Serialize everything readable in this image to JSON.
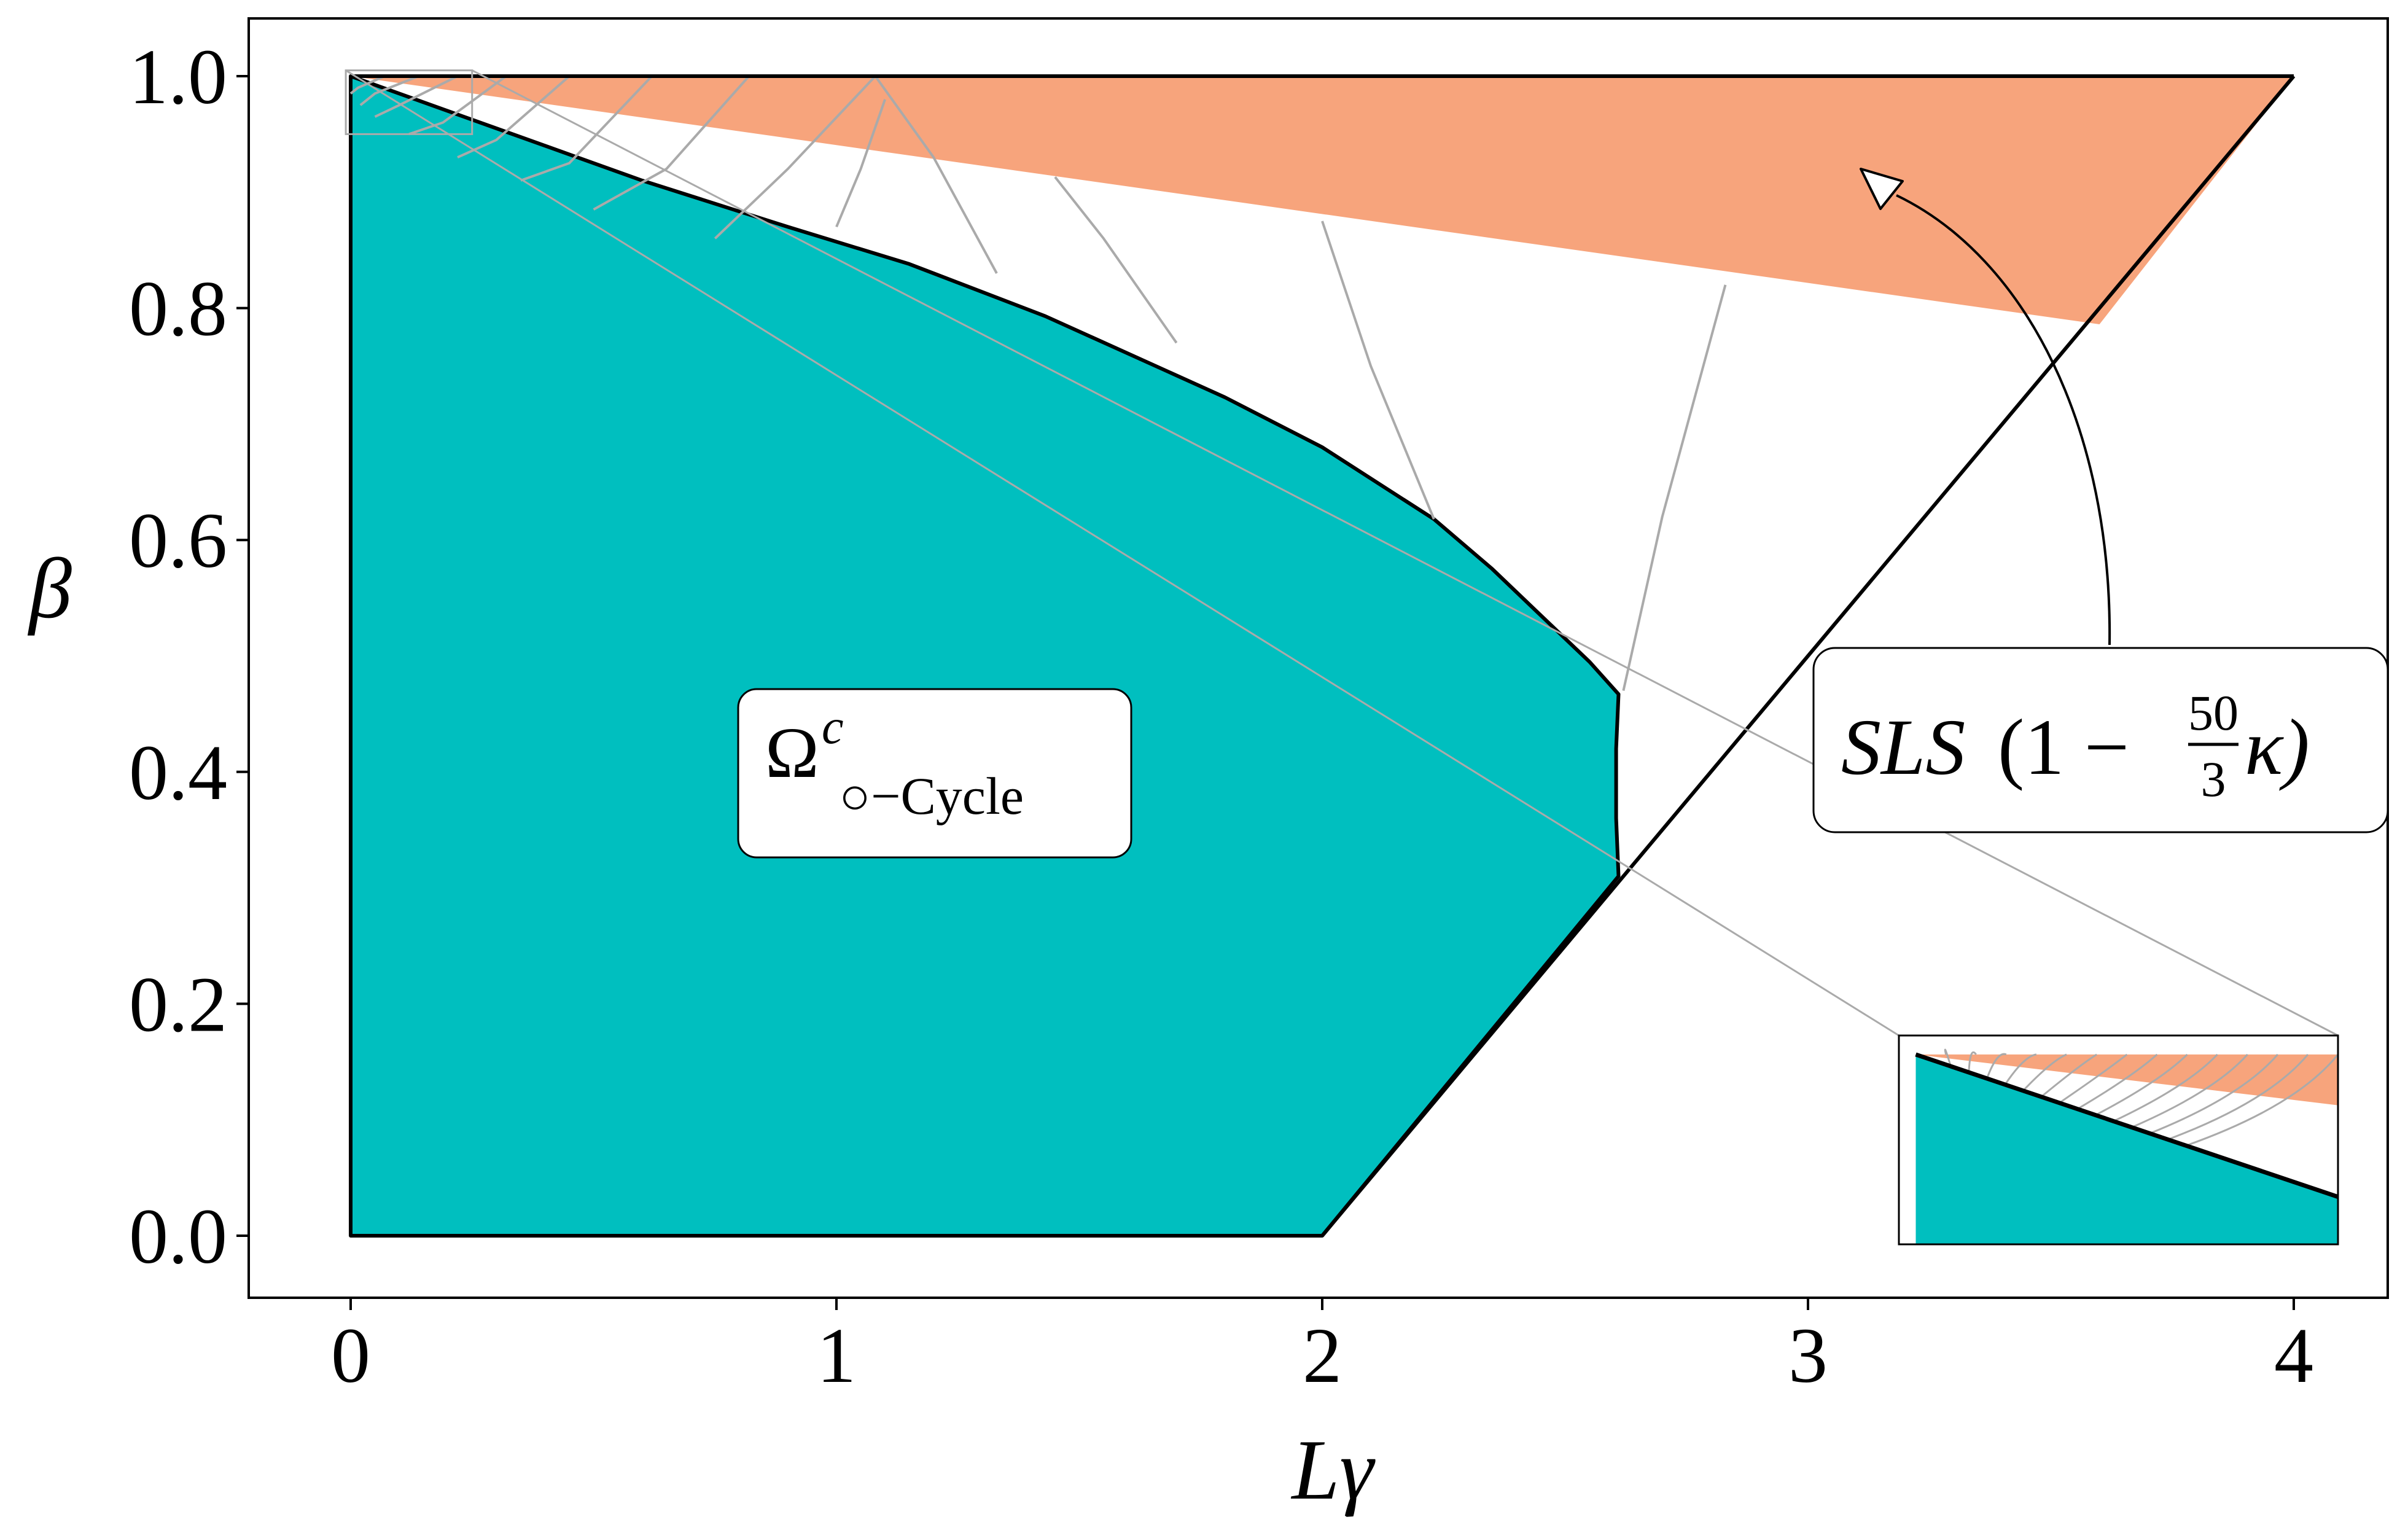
{
  "chart_data": {
    "type": "area",
    "xlabel": "Lγ",
    "ylabel": "β",
    "xlim": [
      -0.21,
      4.2
    ],
    "ylim": [
      -0.05,
      1.05
    ],
    "xticks": [
      0,
      1,
      2,
      3,
      4
    ],
    "yticks": [
      0.0,
      0.2,
      0.4,
      0.6,
      0.8,
      1.0
    ],
    "xtick_labels": [
      "0",
      "1",
      "2",
      "3",
      "4"
    ],
    "ytick_labels": [
      "0.0",
      "0.2",
      "0.4",
      "0.6",
      "0.8",
      "1.0"
    ],
    "grid": false,
    "colors": {
      "region_fill": "#00bfbf",
      "sls_fill": "#f7a47c",
      "boundary": "#000000",
      "contour": "#aaaaaa"
    },
    "region": {
      "name": "Ω^c_{○−Cycle}",
      "label_main": "Ω",
      "label_sup": "c",
      "label_sub": "○−Cycle",
      "boundary": [
        [
          0,
          0
        ],
        [
          0,
          1.0
        ],
        [
          0.3,
          0.955
        ],
        [
          0.6,
          0.91
        ],
        [
          0.9,
          0.87
        ],
        [
          1.15,
          0.838
        ],
        [
          1.43,
          0.793
        ],
        [
          1.8,
          0.723
        ],
        [
          2.0,
          0.68
        ],
        [
          2.23,
          0.618
        ],
        [
          2.35,
          0.575
        ],
        [
          2.45,
          0.535
        ],
        [
          2.55,
          0.495
        ],
        [
          2.61,
          0.467
        ],
        [
          2.605,
          0.42
        ],
        [
          2.605,
          0.36
        ],
        [
          2.61,
          0.31
        ],
        [
          2.0,
          0.0
        ]
      ]
    },
    "sls_region": {
      "name": "SLS(1 − 50/3 κ)",
      "label_parts": [
        "SLS",
        "(1 − ",
        "50",
        "3",
        "κ)"
      ],
      "boundary": [
        [
          0,
          1.0
        ],
        [
          4.0,
          1.0
        ],
        [
          3.6,
          0.786
        ]
      ]
    },
    "lines": [
      {
        "name": "upper-edge",
        "points": [
          [
            0,
            1.0
          ],
          [
            4.0,
            1.0
          ]
        ]
      },
      {
        "name": "diagonal",
        "points": [
          [
            2.0,
            0.0
          ],
          [
            4.0,
            1.0
          ]
        ]
      }
    ],
    "contours": [
      [
        [
          0.07,
          1.0
        ],
        [
          0.015,
          0.99
        ],
        [
          0.0,
          0.985
        ]
      ],
      [
        [
          0.14,
          1.0
        ],
        [
          0.05,
          0.985
        ],
        [
          0.02,
          0.975
        ]
      ],
      [
        [
          0.22,
          1.0
        ],
        [
          0.1,
          0.975
        ],
        [
          0.05,
          0.965
        ]
      ],
      [
        [
          0.32,
          1.0
        ],
        [
          0.19,
          0.96
        ],
        [
          0.12,
          0.95
        ]
      ],
      [
        [
          0.45,
          1.0
        ],
        [
          0.3,
          0.945
        ],
        [
          0.22,
          0.93
        ]
      ],
      [
        [
          0.62,
          1.0
        ],
        [
          0.45,
          0.925
        ],
        [
          0.35,
          0.91
        ]
      ],
      [
        [
          0.82,
          1.0
        ],
        [
          0.65,
          0.92
        ],
        [
          0.5,
          0.885
        ]
      ],
      [
        [
          1.08,
          1.0
        ],
        [
          0.9,
          0.92
        ],
        [
          0.75,
          0.86
        ]
      ],
      [
        [
          1.1,
          0.98
        ],
        [
          1.05,
          0.92
        ],
        [
          1.0,
          0.87
        ]
      ],
      [
        [
          1.08,
          1.0
        ],
        [
          1.2,
          0.93
        ],
        [
          1.33,
          0.83
        ]
      ],
      [
        [
          1.45,
          0.913
        ],
        [
          1.55,
          0.86
        ],
        [
          1.7,
          0.77
        ]
      ],
      [
        [
          2.0,
          0.875
        ],
        [
          2.1,
          0.75
        ],
        [
          2.23,
          0.618
        ]
      ],
      [
        [
          2.83,
          0.82
        ],
        [
          2.7,
          0.62
        ],
        [
          2.62,
          0.47
        ]
      ]
    ],
    "inset": {
      "source_xlim": [
        -0.01,
        0.25
      ],
      "source_ylim": [
        0.95,
        1.005
      ],
      "contour_count": 14
    }
  }
}
